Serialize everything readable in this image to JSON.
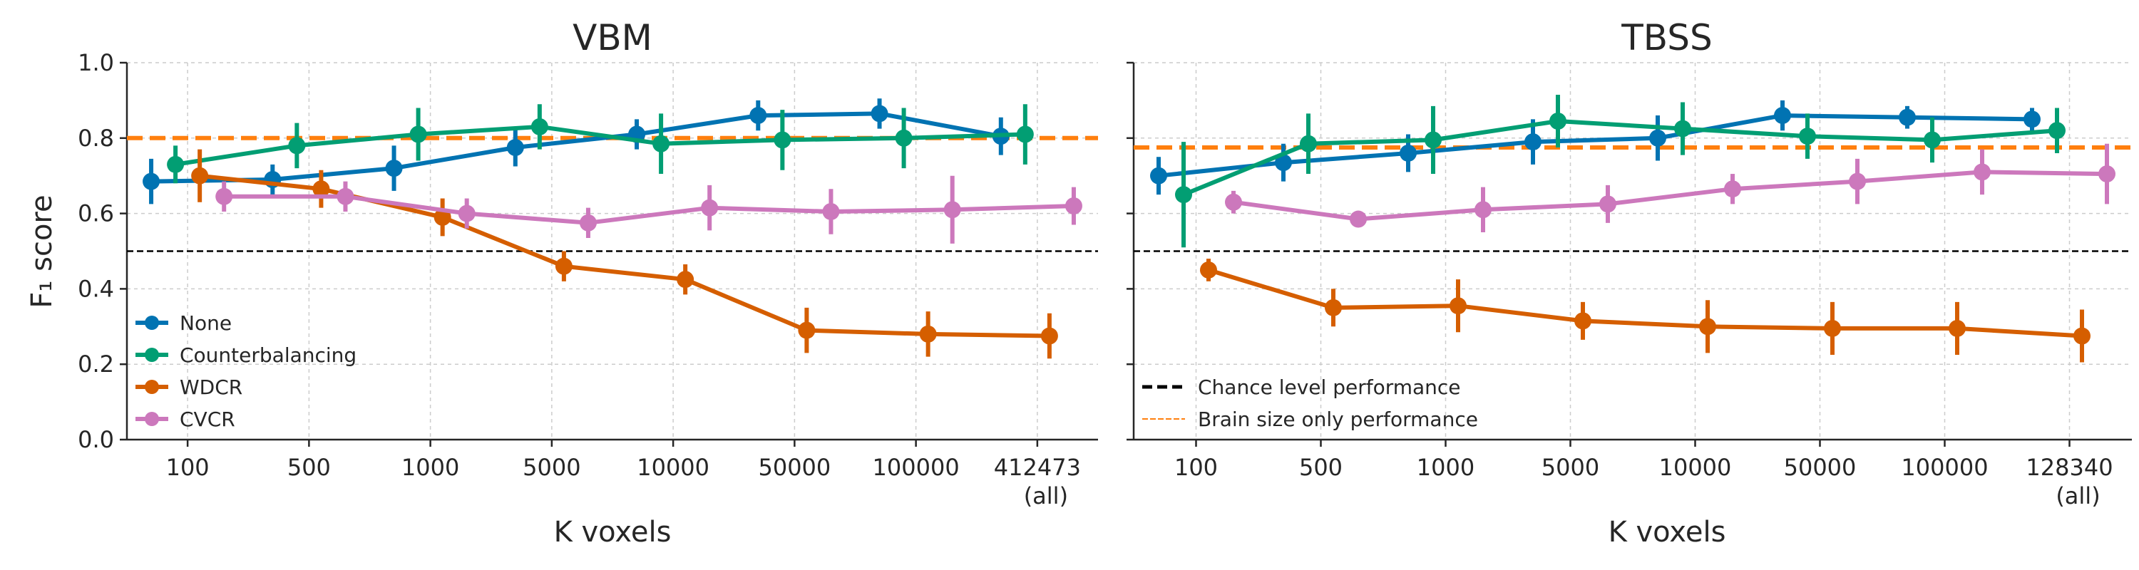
{
  "chart_data": [
    {
      "type": "line",
      "title": "VBM",
      "xlabel": "K voxels",
      "ylabel": "F₁ score",
      "ylim": [
        0.0,
        1.0
      ],
      "yticks": [
        "0.0",
        "0.2",
        "0.4",
        "0.6",
        "0.8",
        "1.0"
      ],
      "categories": [
        "100",
        "500",
        "1000",
        "5000",
        "10000",
        "50000",
        "100000",
        "412473"
      ],
      "category_sublabels": [
        "",
        "",
        "",
        "",
        "",
        "",
        "",
        "(all)"
      ],
      "grid": true,
      "legend_position": "lower-left",
      "series": [
        {
          "name": "None",
          "color": "#0173b2",
          "values": [
            0.685,
            0.69,
            0.72,
            0.775,
            0.81,
            0.86,
            0.865,
            0.805
          ],
          "err": [
            0.06,
            0.04,
            0.06,
            0.05,
            0.04,
            0.04,
            0.04,
            0.05
          ]
        },
        {
          "name": "Counterbalancing",
          "color": "#029e73",
          "values": [
            0.73,
            0.78,
            0.81,
            0.83,
            0.785,
            0.795,
            0.8,
            0.81
          ],
          "err": [
            0.05,
            0.06,
            0.07,
            0.06,
            0.08,
            0.08,
            0.08,
            0.08
          ]
        },
        {
          "name": "WDCR",
          "color": "#d55e00",
          "values": [
            0.7,
            0.665,
            0.59,
            0.46,
            0.425,
            0.29,
            0.28,
            0.275
          ],
          "err": [
            0.07,
            0.05,
            0.05,
            0.04,
            0.04,
            0.06,
            0.06,
            0.06
          ]
        },
        {
          "name": "CVCR",
          "color": "#cc78bc",
          "values": [
            0.645,
            0.645,
            0.6,
            0.575,
            0.615,
            0.605,
            0.61,
            0.62
          ],
          "err": [
            0.04,
            0.04,
            0.04,
            0.04,
            0.06,
            0.06,
            0.09,
            0.05
          ]
        }
      ],
      "reference_lines": [
        {
          "name": "Chance level performance",
          "value": 0.5,
          "color": "#000000"
        },
        {
          "name": "Brain size only performance",
          "value": 0.8,
          "color": "#ff7f0e"
        }
      ]
    },
    {
      "type": "line",
      "title": "TBSS",
      "xlabel": "K voxels",
      "ylabel": "",
      "ylim": [
        0.0,
        1.0
      ],
      "categories": [
        "100",
        "500",
        "1000",
        "5000",
        "10000",
        "50000",
        "100000",
        "128340"
      ],
      "category_sublabels": [
        "",
        "",
        "",
        "",
        "",
        "",
        "",
        "(all)"
      ],
      "grid": true,
      "legend_position": "lower-left",
      "series": [
        {
          "name": "None",
          "color": "#0173b2",
          "values": [
            0.7,
            0.735,
            0.76,
            0.79,
            0.8,
            0.86,
            0.855,
            0.85
          ],
          "err": [
            0.05,
            0.05,
            0.05,
            0.06,
            0.06,
            0.04,
            0.03,
            0.03
          ]
        },
        {
          "name": "Counterbalancing",
          "color": "#029e73",
          "values": [
            0.65,
            0.785,
            0.795,
            0.845,
            0.825,
            0.805,
            0.795,
            0.82
          ],
          "err": [
            0.14,
            0.08,
            0.09,
            0.07,
            0.07,
            0.06,
            0.06,
            0.06
          ]
        },
        {
          "name": "WDCR",
          "color": "#d55e00",
          "values": [
            0.45,
            0.35,
            0.355,
            0.315,
            0.3,
            0.295,
            0.295,
            0.275
          ],
          "err": [
            0.03,
            0.05,
            0.07,
            0.05,
            0.07,
            0.07,
            0.07,
            0.07
          ]
        },
        {
          "name": "CVCR",
          "color": "#cc78bc",
          "values": [
            0.63,
            0.585,
            0.61,
            0.625,
            0.665,
            0.685,
            0.71,
            0.705
          ],
          "err": [
            0.03,
            0.02,
            0.06,
            0.05,
            0.04,
            0.06,
            0.06,
            0.08
          ]
        }
      ],
      "reference_lines": [
        {
          "name": "Chance level performance",
          "value": 0.5,
          "color": "#000000"
        },
        {
          "name": "Brain size only performance",
          "value": 0.775,
          "color": "#ff7f0e"
        }
      ]
    }
  ]
}
